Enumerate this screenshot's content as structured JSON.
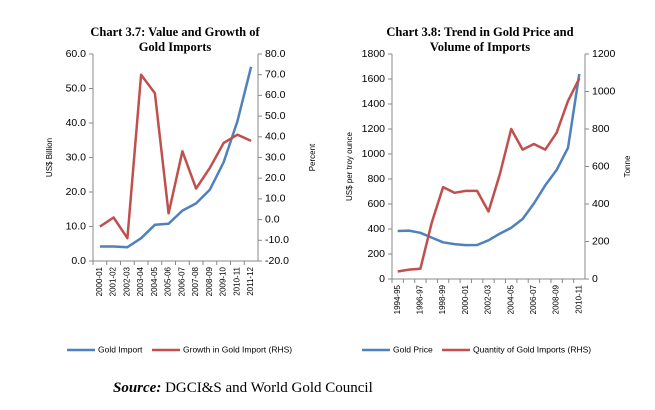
{
  "chart_data": [
    {
      "type": "line",
      "title": [
        "Chart  3.7: Value and Growth of",
        "Gold Imports"
      ],
      "y_label": "US$ Billion",
      "y2_label": "Percent",
      "categories": [
        "2000-01",
        "2001-02",
        "2002-03",
        "2003-04",
        "2004-05",
        "2005-06",
        "2006-07",
        "2007-08",
        "2008-09",
        "2009-10",
        "2010-11",
        "2011-12"
      ],
      "series": [
        {
          "name": "Gold Import",
          "color": "#4f81bd",
          "values": [
            4.2,
            4.2,
            4.0,
            6.6,
            10.5,
            10.8,
            14.6,
            16.7,
            20.7,
            28.6,
            40.5,
            56.3
          ]
        },
        {
          "name": "Growth in Gold Import (RHS)",
          "color": "#c0504d",
          "axis": "y2",
          "values": [
            -3.4,
            1,
            -9,
            70,
            61,
            3,
            33,
            15,
            25,
            37,
            41,
            38
          ]
        }
      ],
      "ylim": [
        0,
        60
      ],
      "yticks": [
        {
          "value": 0,
          "label": "0.0"
        },
        {
          "value": 10,
          "label": "10.0"
        },
        {
          "value": 20,
          "label": "20.0"
        },
        {
          "value": 30,
          "label": "30.0"
        },
        {
          "value": 40,
          "label": "40.0"
        },
        {
          "value": 50,
          "label": "50.0"
        },
        {
          "value": 60,
          "label": "60.0"
        }
      ],
      "y2lim": [
        -20,
        80
      ],
      "y2ticks": [
        {
          "value": -20,
          "label": "-20.0"
        },
        {
          "value": -10,
          "label": "-10.0"
        },
        {
          "value": 0,
          "label": "0.0"
        },
        {
          "value": 10,
          "label": "10.0"
        },
        {
          "value": 20,
          "label": "20.0"
        },
        {
          "value": 30,
          "label": "30.0"
        },
        {
          "value": 40,
          "label": "40.0"
        },
        {
          "value": 50,
          "label": "50.0"
        },
        {
          "value": 60,
          "label": "60.0"
        },
        {
          "value": 70,
          "label": "70.0"
        },
        {
          "value": 80,
          "label": "80.0"
        }
      ]
    },
    {
      "type": "line",
      "title": [
        "Chart 3.8:  Trend in Gold Price and",
        "Volume of Imports"
      ],
      "y_label": "US$ per troy ounce",
      "y2_label": "Tonne",
      "categories": [
        "1994-95",
        null,
        "1996-97",
        null,
        "1998-99",
        null,
        "2000-01",
        null,
        "2002-03",
        null,
        "2004-05",
        null,
        "2006-07",
        null,
        "2008-09",
        null,
        "2010-11"
      ],
      "series": [
        {
          "name": "Gold Price",
          "color": "#4f81bd",
          "values": [
            384,
            387,
            370,
            331,
            294,
            279,
            271,
            272,
            310,
            363,
            410,
            480,
            604,
            750,
            872,
            1050,
            1640
          ]
        },
        {
          "name": "Quantity of Gold Imports (RHS)",
          "color": "#c0504d",
          "axis": "y2",
          "values": [
            40,
            50,
            55,
            300,
            490,
            460,
            470,
            470,
            360,
            560,
            800,
            690,
            720,
            690,
            780,
            950,
            1070
          ]
        }
      ],
      "ylim": [
        0,
        1800
      ],
      "yticks": [
        0,
        200,
        400,
        600,
        800,
        1000,
        1200,
        1400,
        1600,
        1800
      ],
      "y2lim": [
        0,
        1200
      ],
      "y2ticks": [
        0,
        200,
        400,
        600,
        800,
        1000,
        1200
      ]
    }
  ],
  "source": {
    "label": "Source:",
    "text": " DGCI&S and World Gold Council"
  }
}
